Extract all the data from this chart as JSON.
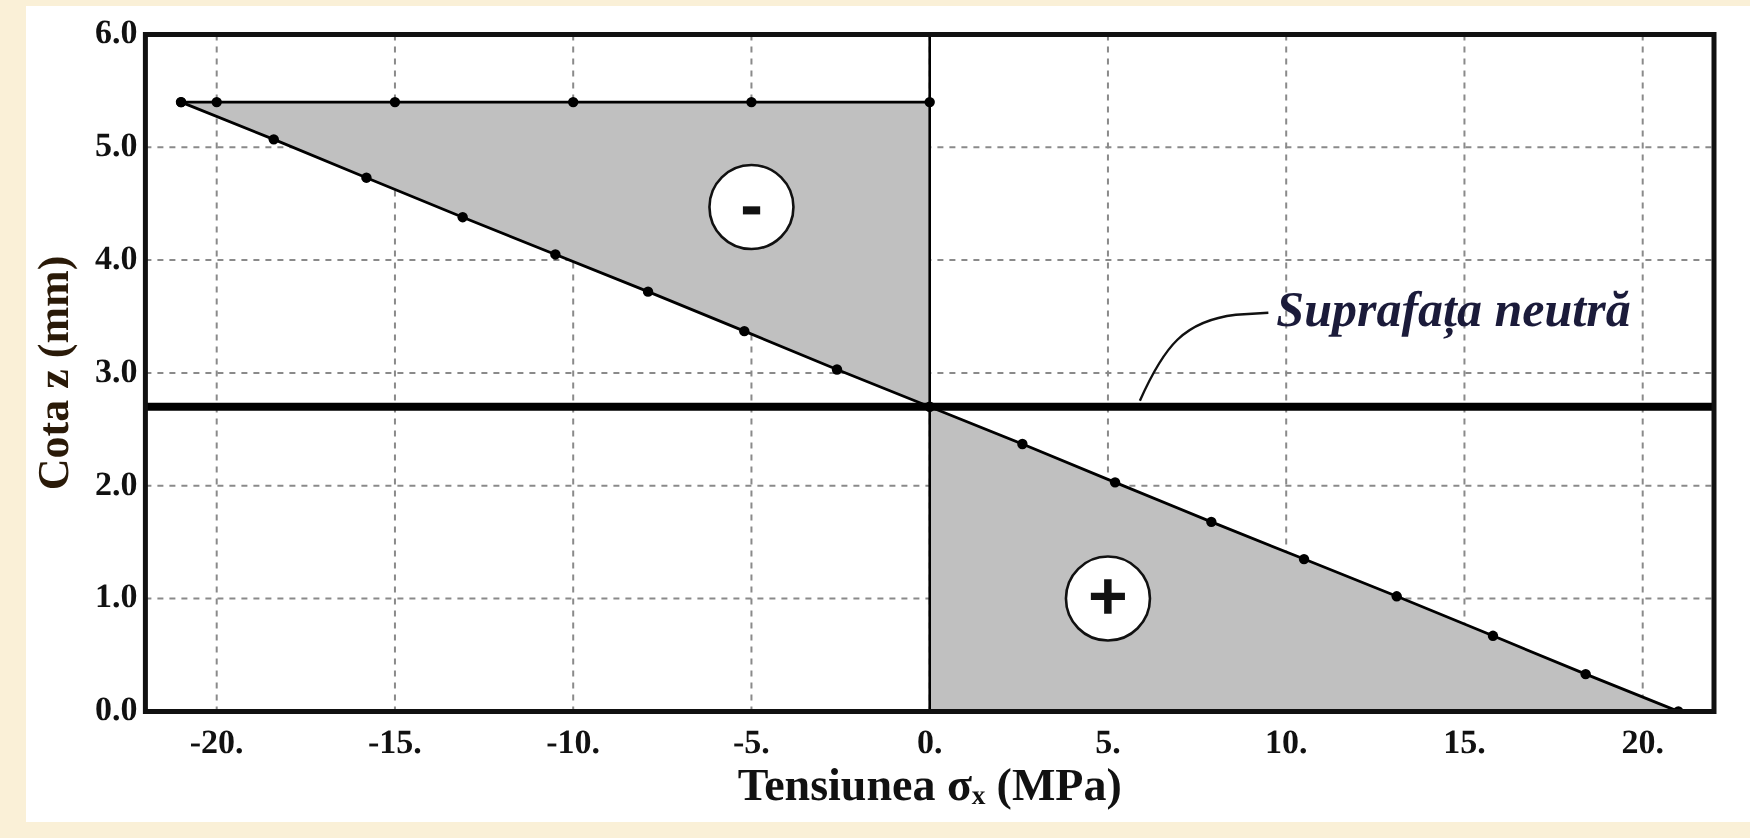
{
  "chart_data": {
    "type": "line",
    "xlabel": "Tensiunea σₓ (MPa)",
    "ylabel": "Cota z (mm)",
    "xlim": [
      -22,
      22
    ],
    "ylim": [
      0,
      6
    ],
    "xticks": [
      {
        "value": -20,
        "label": "-20."
      },
      {
        "value": -15,
        "label": "-15."
      },
      {
        "value": -10,
        "label": "-10."
      },
      {
        "value": -5,
        "label": "-5."
      },
      {
        "value": 0,
        "label": "0."
      },
      {
        "value": 5,
        "label": "5."
      },
      {
        "value": 10,
        "label": "10."
      },
      {
        "value": 15,
        "label": "15."
      },
      {
        "value": 20,
        "label": "20."
      }
    ],
    "yticks": [
      {
        "value": 0,
        "label": "0.0"
      },
      {
        "value": 1,
        "label": "1.0"
      },
      {
        "value": 2,
        "label": "2.0"
      },
      {
        "value": 3,
        "label": "3.0"
      },
      {
        "value": 4,
        "label": "4.0"
      },
      {
        "value": 5,
        "label": "5.0"
      },
      {
        "value": 6,
        "label": "6.0"
      }
    ],
    "grid": true,
    "marker": "circle",
    "series": [
      {
        "color": "#000000",
        "x": [
          -21,
          -18.4,
          -15.8,
          -13.1,
          -10.5,
          -7.9,
          -5.2,
          -2.6,
          0,
          2.6,
          5.2,
          7.9,
          10.5,
          13.1,
          15.8,
          18.4,
          21
        ],
        "values": [
          5.4,
          5.07,
          4.73,
          4.38,
          4.05,
          3.72,
          3.37,
          3.03,
          2.7,
          2.37,
          2.03,
          1.68,
          1.35,
          1.02,
          0.67,
          0.33,
          0
        ],
        "lower": [
          null,
          null,
          null,
          null,
          null,
          null,
          null,
          null,
          0,
          0,
          0,
          0,
          0,
          0,
          0,
          0,
          0
        ],
        "upper": [
          null,
          null,
          null,
          null,
          null,
          null,
          null,
          null,
          2.7,
          2.37,
          2.03,
          1.68,
          1.35,
          1.02,
          0.67,
          0.33,
          0
        ]
      },
      {
        "color": "#000000",
        "x": [
          -21,
          -20,
          -15,
          -10,
          -5,
          0
        ],
        "values": [
          5.4,
          5.4,
          5.4,
          5.4,
          5.4,
          5.4
        ],
        "lower": [
          5.4,
          5.27,
          4.63,
          3.99,
          3.34,
          2.7
        ],
        "upper": [
          5.4,
          5.4,
          5.4,
          5.4,
          5.4,
          5.4
        ]
      }
    ],
    "ref_lines": [
      {
        "axis": "y",
        "value": 2.7,
        "label": "Suprafața neutră",
        "color": "#000000"
      },
      {
        "axis": "x",
        "value": 0,
        "color": "#000000"
      }
    ],
    "annotations": [
      {
        "text": "-",
        "x": -5,
        "y": 4.47
      },
      {
        "text": "+",
        "x": 5,
        "y": 1
      }
    ]
  }
}
